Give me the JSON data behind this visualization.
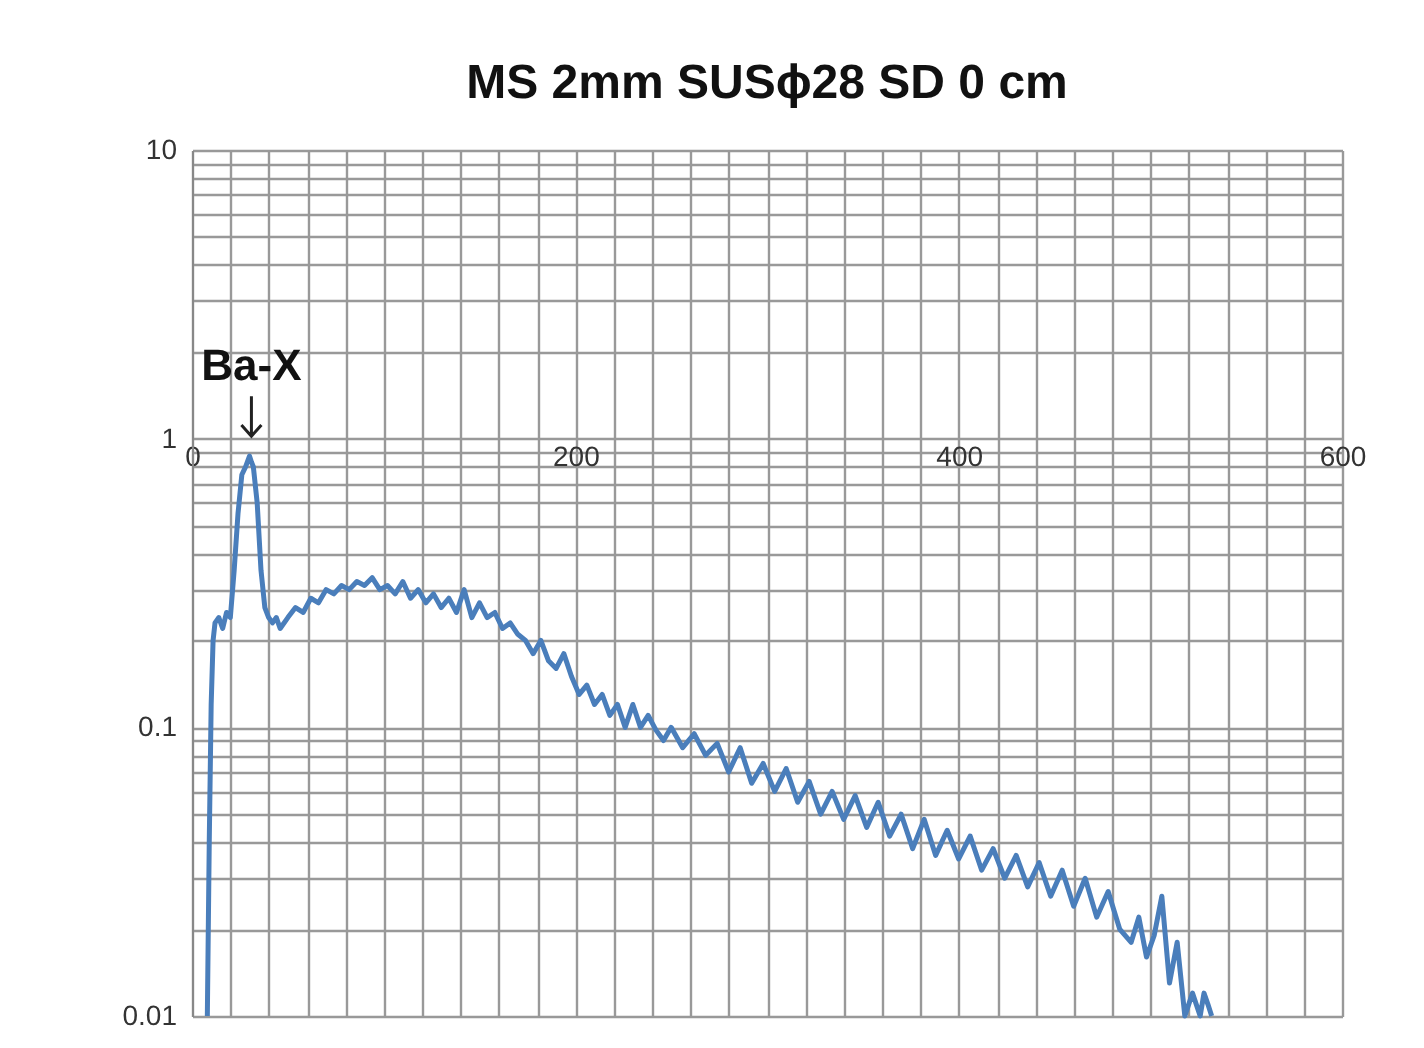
{
  "chart_data": {
    "type": "line",
    "title": "MS 2mm SUSϕ28 SD 0 cm",
    "x": [
      8,
      9,
      10,
      11,
      12,
      14,
      16,
      18,
      20,
      22,
      24,
      26,
      28,
      30,
      31,
      32,
      34,
      36,
      38,
      40,
      42,
      44,
      46,
      50,
      54,
      58,
      62,
      66,
      70,
      74,
      78,
      82,
      86,
      90,
      94,
      98,
      102,
      106,
      110,
      114,
      118,
      122,
      126,
      130,
      134,
      138,
      142,
      146,
      150,
      154,
      158,
      162,
      166,
      170,
      174,
      178,
      182,
      186,
      190,
      194,
      198,
      202,
      206,
      210,
      214,
      218,
      222,
      226,
      230,
      234,
      238,
      242,
      246,
      250,
      256,
      262,
      268,
      274,
      280,
      286,
      292,
      298,
      304,
      310,
      316,
      322,
      328,
      334,
      340,
      346,
      352,
      358,
      364,
      370,
      376,
      382,
      388,
      394,
      400,
      406,
      412,
      418,
      424,
      430,
      436,
      442,
      448,
      454,
      460,
      466,
      472,
      478,
      484,
      490,
      494,
      498,
      502,
      506,
      510,
      514,
      518,
      522,
      526,
      528,
      530,
      532
    ],
    "series": [
      {
        "color": "#4a7ebb",
        "values": [
          0.01,
          0.04,
          0.12,
          0.2,
          0.23,
          0.24,
          0.22,
          0.25,
          0.24,
          0.35,
          0.55,
          0.75,
          0.8,
          0.87,
          0.83,
          0.8,
          0.6,
          0.35,
          0.26,
          0.24,
          0.23,
          0.24,
          0.22,
          0.24,
          0.26,
          0.25,
          0.28,
          0.27,
          0.3,
          0.29,
          0.31,
          0.3,
          0.32,
          0.31,
          0.33,
          0.3,
          0.31,
          0.29,
          0.32,
          0.28,
          0.3,
          0.27,
          0.29,
          0.26,
          0.28,
          0.25,
          0.3,
          0.24,
          0.27,
          0.24,
          0.25,
          0.22,
          0.23,
          0.21,
          0.2,
          0.18,
          0.2,
          0.17,
          0.16,
          0.18,
          0.15,
          0.13,
          0.14,
          0.12,
          0.13,
          0.11,
          0.12,
          0.1,
          0.12,
          0.1,
          0.11,
          0.098,
          0.09,
          0.1,
          0.085,
          0.095,
          0.08,
          0.088,
          0.07,
          0.085,
          0.064,
          0.075,
          0.06,
          0.072,
          0.055,
          0.065,
          0.05,
          0.06,
          0.048,
          0.058,
          0.045,
          0.055,
          0.042,
          0.05,
          0.038,
          0.048,
          0.036,
          0.044,
          0.035,
          0.042,
          0.032,
          0.038,
          0.03,
          0.036,
          0.028,
          0.034,
          0.026,
          0.032,
          0.024,
          0.03,
          0.022,
          0.027,
          0.02,
          0.018,
          0.022,
          0.016,
          0.019,
          0.026,
          0.013,
          0.018,
          0.01,
          0.012,
          0.01,
          0.012,
          0.011,
          0.01
        ]
      }
    ],
    "annotations": [
      {
        "text": "Ba-X",
        "x": 31,
        "y": 0.87
      }
    ],
    "log": "y",
    "xlim": [
      0,
      600
    ],
    "xticks": [
      0,
      200,
      400,
      600
    ],
    "ylim": [
      0.01,
      10
    ],
    "yticks": [
      0.01,
      0.1,
      1,
      10
    ],
    "grid": true,
    "legend": false,
    "marker": "none",
    "line_style": "solid"
  }
}
